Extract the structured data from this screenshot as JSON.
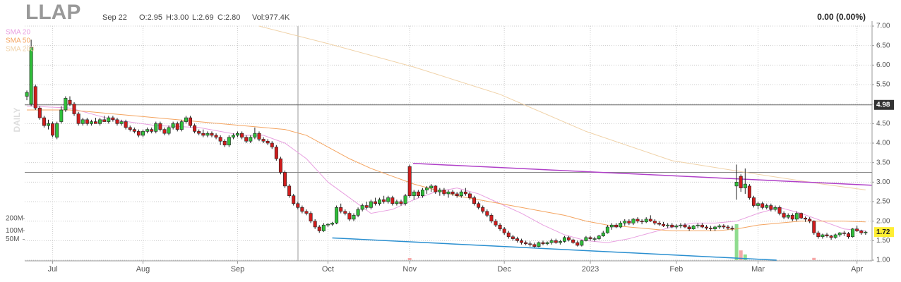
{
  "chart_data": {
    "type": "candlestick",
    "title": "LLAP",
    "info": [
      "Sep 22",
      "O:2.95",
      "H:3.00",
      "L:2.69",
      "C:2.80",
      "Vol:977.4K"
    ],
    "change": "0.00 (0.00%)",
    "period_label": "DAILY",
    "xlim": [
      -0.5,
      196.5
    ],
    "xticks": [
      {
        "value": 6,
        "label": "Jul"
      },
      {
        "value": 27,
        "label": "Aug"
      },
      {
        "value": 49,
        "label": "Sep"
      },
      {
        "value": 70,
        "label": "Oct"
      },
      {
        "value": 89,
        "label": "Nov"
      },
      {
        "value": 111,
        "label": "Dec"
      },
      {
        "value": 131,
        "label": "2023"
      },
      {
        "value": 151,
        "label": "Feb"
      },
      {
        "value": 170,
        "label": "Mar"
      },
      {
        "value": 193,
        "label": "Apr"
      }
    ],
    "ylim": [
      1,
      7
    ],
    "yticks": [
      {
        "value": 1,
        "label": "1.00"
      },
      {
        "value": 1.5,
        "label": "1.50"
      },
      {
        "value": 2,
        "label": "2.00"
      },
      {
        "value": 2.5,
        "label": "2.50"
      },
      {
        "value": 3,
        "label": "3.00"
      },
      {
        "value": 3.5,
        "label": "3.50"
      },
      {
        "value": 4,
        "label": "4.00"
      },
      {
        "value": 4.5,
        "label": "4.50"
      },
      {
        "value": 5,
        "label": "5.00"
      },
      {
        "value": 5.5,
        "label": "5.50"
      },
      {
        "value": 6,
        "label": "6.00"
      },
      {
        "value": 6.5,
        "label": "6.50"
      },
      {
        "value": 7,
        "label": "7.00"
      }
    ],
    "grid": true,
    "up_color": "#2fbf3a",
    "down_color": "#d01c1c",
    "ohlc": [
      [
        5.2,
        5.35,
        5.1,
        5.3
      ],
      [
        5.0,
        6.65,
        4.95,
        6.45
      ],
      [
        5.45,
        5.5,
        4.85,
        4.9
      ],
      [
        4.9,
        4.95,
        4.6,
        4.65
      ],
      [
        4.65,
        4.7,
        4.4,
        4.45
      ],
      [
        4.45,
        4.6,
        4.35,
        4.5
      ],
      [
        4.5,
        4.55,
        4.15,
        4.2
      ],
      [
        4.15,
        4.55,
        4.1,
        4.5
      ],
      [
        4.55,
        4.95,
        4.5,
        4.85
      ],
      [
        4.85,
        5.2,
        4.8,
        5.15
      ],
      [
        5.1,
        5.2,
        4.95,
        5.0
      ],
      [
        5.0,
        5.05,
        4.7,
        4.75
      ],
      [
        4.75,
        4.8,
        4.45,
        4.5
      ],
      [
        4.5,
        4.65,
        4.45,
        4.6
      ],
      [
        4.6,
        4.65,
        4.45,
        4.5
      ],
      [
        4.5,
        4.6,
        4.45,
        4.55
      ],
      [
        4.55,
        4.65,
        4.5,
        4.5
      ],
      [
        4.5,
        4.65,
        4.45,
        4.6
      ],
      [
        4.6,
        4.7,
        4.55,
        4.55
      ],
      [
        4.55,
        4.7,
        4.5,
        4.65
      ],
      [
        4.65,
        4.7,
        4.55,
        4.6
      ],
      [
        4.6,
        4.65,
        4.45,
        4.5
      ],
      [
        4.5,
        4.6,
        4.45,
        4.55
      ],
      [
        4.55,
        4.6,
        4.35,
        4.4
      ],
      [
        4.4,
        4.45,
        4.3,
        4.35
      ],
      [
        4.35,
        4.4,
        4.25,
        4.3
      ],
      [
        4.3,
        4.35,
        4.15,
        4.2
      ],
      [
        4.2,
        4.35,
        4.15,
        4.3
      ],
      [
        4.3,
        4.4,
        4.25,
        4.35
      ],
      [
        4.35,
        4.4,
        4.25,
        4.3
      ],
      [
        4.3,
        4.55,
        4.25,
        4.5
      ],
      [
        4.5,
        4.55,
        4.3,
        4.35
      ],
      [
        4.35,
        4.4,
        4.2,
        4.25
      ],
      [
        4.25,
        4.45,
        4.2,
        4.4
      ],
      [
        4.4,
        4.55,
        4.35,
        4.5
      ],
      [
        4.5,
        4.55,
        4.3,
        4.35
      ],
      [
        4.35,
        4.6,
        4.3,
        4.55
      ],
      [
        4.55,
        4.7,
        4.5,
        4.65
      ],
      [
        4.65,
        4.7,
        4.4,
        4.45
      ],
      [
        4.45,
        4.5,
        4.25,
        4.3
      ],
      [
        4.3,
        4.35,
        4.2,
        4.25
      ],
      [
        4.25,
        4.35,
        4.15,
        4.2
      ],
      [
        4.2,
        4.3,
        4.15,
        4.25
      ],
      [
        4.25,
        4.3,
        4.15,
        4.2
      ],
      [
        4.2,
        4.25,
        4.1,
        4.15
      ],
      [
        4.15,
        4.2,
        3.95,
        4.05
      ],
      [
        4.05,
        4.1,
        3.9,
        3.95
      ],
      [
        3.95,
        4.2,
        3.9,
        4.15
      ],
      [
        4.15,
        4.25,
        4.1,
        4.2
      ],
      [
        4.2,
        4.3,
        4.15,
        4.25
      ],
      [
        4.25,
        4.3,
        4.1,
        4.15
      ],
      [
        4.15,
        4.2,
        4.0,
        4.05
      ],
      [
        4.05,
        4.2,
        4.0,
        4.15
      ],
      [
        4.15,
        4.4,
        4.1,
        4.25
      ],
      [
        4.25,
        4.3,
        4.05,
        4.1
      ],
      [
        4.1,
        4.15,
        4.0,
        4.05
      ],
      [
        4.05,
        4.1,
        3.95,
        4.0
      ],
      [
        4.0,
        4.05,
        3.85,
        3.9
      ],
      [
        3.9,
        3.95,
        3.55,
        3.6
      ],
      [
        3.6,
        3.65,
        3.2,
        3.25
      ],
      [
        3.25,
        3.3,
        2.85,
        2.9
      ],
      [
        2.9,
        2.95,
        2.6,
        2.65
      ],
      [
        2.65,
        2.7,
        2.4,
        2.45
      ],
      [
        2.45,
        2.5,
        2.3,
        2.35
      ],
      [
        2.35,
        2.4,
        2.2,
        2.25
      ],
      [
        2.25,
        2.3,
        2.15,
        2.2
      ],
      [
        2.2,
        2.25,
        1.95,
        2.0
      ],
      [
        2.0,
        2.05,
        1.8,
        1.85
      ],
      [
        1.85,
        1.9,
        1.7,
        1.75
      ],
      [
        1.75,
        1.95,
        1.72,
        1.9
      ],
      [
        1.9,
        1.95,
        1.85,
        1.92
      ],
      [
        1.92,
        1.98,
        1.88,
        1.95
      ],
      [
        1.95,
        2.4,
        1.92,
        2.35
      ],
      [
        2.35,
        2.45,
        2.2,
        2.25
      ],
      [
        2.25,
        2.3,
        2.15,
        2.2
      ],
      [
        2.2,
        2.25,
        2.0,
        2.05
      ],
      [
        2.05,
        2.2,
        2.0,
        2.15
      ],
      [
        2.15,
        2.35,
        2.1,
        2.3
      ],
      [
        2.3,
        2.45,
        2.25,
        2.4
      ],
      [
        2.4,
        2.5,
        2.3,
        2.35
      ],
      [
        2.35,
        2.55,
        2.3,
        2.5
      ],
      [
        2.5,
        2.6,
        2.4,
        2.45
      ],
      [
        2.45,
        2.6,
        2.4,
        2.55
      ],
      [
        2.55,
        2.65,
        2.45,
        2.5
      ],
      [
        2.5,
        2.65,
        2.45,
        2.6
      ],
      [
        2.6,
        2.65,
        2.4,
        2.45
      ],
      [
        2.45,
        2.55,
        2.4,
        2.5
      ],
      [
        2.5,
        2.55,
        2.4,
        2.45
      ],
      [
        2.45,
        2.7,
        2.4,
        2.65
      ],
      [
        3.4,
        3.45,
        2.6,
        2.65
      ],
      [
        2.65,
        2.8,
        2.55,
        2.75
      ],
      [
        2.75,
        2.8,
        2.6,
        2.65
      ],
      [
        2.65,
        2.85,
        2.6,
        2.8
      ],
      [
        2.8,
        2.9,
        2.7,
        2.85
      ],
      [
        2.85,
        2.95,
        2.75,
        2.9
      ],
      [
        2.9,
        2.92,
        2.7,
        2.75
      ],
      [
        2.75,
        2.85,
        2.65,
        2.8
      ],
      [
        2.8,
        2.85,
        2.65,
        2.7
      ],
      [
        2.7,
        2.8,
        2.6,
        2.75
      ],
      [
        2.75,
        2.8,
        2.65,
        2.7
      ],
      [
        2.7,
        2.75,
        2.6,
        2.65
      ],
      [
        2.65,
        2.8,
        2.6,
        2.75
      ],
      [
        2.75,
        2.85,
        2.65,
        2.7
      ],
      [
        2.7,
        2.75,
        2.55,
        2.6
      ],
      [
        2.6,
        2.65,
        2.4,
        2.45
      ],
      [
        2.45,
        2.5,
        2.3,
        2.35
      ],
      [
        2.35,
        2.4,
        2.2,
        2.25
      ],
      [
        2.25,
        2.3,
        2.1,
        2.15
      ],
      [
        2.15,
        2.2,
        1.95,
        2.0
      ],
      [
        2.0,
        2.05,
        1.85,
        1.9
      ],
      [
        1.9,
        1.95,
        1.75,
        1.8
      ],
      [
        1.8,
        1.85,
        1.65,
        1.7
      ],
      [
        1.7,
        1.75,
        1.55,
        1.6
      ],
      [
        1.6,
        1.65,
        1.5,
        1.55
      ],
      [
        1.55,
        1.6,
        1.45,
        1.5
      ],
      [
        1.5,
        1.55,
        1.4,
        1.45
      ],
      [
        1.45,
        1.5,
        1.38,
        1.42
      ],
      [
        1.42,
        1.48,
        1.35,
        1.4
      ],
      [
        1.4,
        1.45,
        1.32,
        1.35
      ],
      [
        1.35,
        1.48,
        1.33,
        1.45
      ],
      [
        1.45,
        1.5,
        1.38,
        1.42
      ],
      [
        1.42,
        1.48,
        1.38,
        1.45
      ],
      [
        1.45,
        1.55,
        1.4,
        1.5
      ],
      [
        1.5,
        1.55,
        1.42,
        1.45
      ],
      [
        1.45,
        1.52,
        1.4,
        1.48
      ],
      [
        1.48,
        1.62,
        1.45,
        1.58
      ],
      [
        1.58,
        1.62,
        1.48,
        1.52
      ],
      [
        1.52,
        1.55,
        1.42,
        1.45
      ],
      [
        1.45,
        1.5,
        1.35,
        1.38
      ],
      [
        1.38,
        1.52,
        1.35,
        1.5
      ],
      [
        1.5,
        1.62,
        1.48,
        1.58
      ],
      [
        1.58,
        1.62,
        1.5,
        1.55
      ],
      [
        1.55,
        1.6,
        1.48,
        1.55
      ],
      [
        1.55,
        1.65,
        1.52,
        1.62
      ],
      [
        1.62,
        1.75,
        1.6,
        1.7
      ],
      [
        1.7,
        1.9,
        1.68,
        1.85
      ],
      [
        1.85,
        1.95,
        1.78,
        1.9
      ],
      [
        1.9,
        1.95,
        1.82,
        1.85
      ],
      [
        1.85,
        2.0,
        1.82,
        1.95
      ],
      [
        1.95,
        2.05,
        1.88,
        2.0
      ],
      [
        2.0,
        2.05,
        1.9,
        1.95
      ],
      [
        1.95,
        2.08,
        1.9,
        2.05
      ],
      [
        2.05,
        2.1,
        1.95,
        2.0
      ],
      [
        2.0,
        2.05,
        1.92,
        1.98
      ],
      [
        1.98,
        2.1,
        1.95,
        2.05
      ],
      [
        2.05,
        2.15,
        1.98,
        2.0
      ],
      [
        2.0,
        2.05,
        1.9,
        1.95
      ],
      [
        1.95,
        2.0,
        1.88,
        1.92
      ],
      [
        1.92,
        1.98,
        1.85,
        1.88
      ],
      [
        1.88,
        1.95,
        1.82,
        1.9
      ],
      [
        1.9,
        1.95,
        1.82,
        1.85
      ],
      [
        1.85,
        1.92,
        1.8,
        1.88
      ],
      [
        1.88,
        1.95,
        1.82,
        1.9
      ],
      [
        1.9,
        1.95,
        1.82,
        1.85
      ],
      [
        1.85,
        1.9,
        1.75,
        1.8
      ],
      [
        1.8,
        1.9,
        1.78,
        1.88
      ],
      [
        1.88,
        1.95,
        1.82,
        1.9
      ],
      [
        1.9,
        1.95,
        1.82,
        1.85
      ],
      [
        1.85,
        1.9,
        1.78,
        1.82
      ],
      [
        1.82,
        1.88,
        1.75,
        1.8
      ],
      [
        1.8,
        1.88,
        1.75,
        1.85
      ],
      [
        1.85,
        1.92,
        1.8,
        1.88
      ],
      [
        1.88,
        1.92,
        1.8,
        1.85
      ],
      [
        1.85,
        1.9,
        1.78,
        1.82
      ],
      [
        1.82,
        1.88,
        1.75,
        1.8
      ],
      [
        2.9,
        3.45,
        2.55,
        3.0
      ],
      [
        3.15,
        3.2,
        2.75,
        2.85
      ],
      [
        2.85,
        3.35,
        2.7,
        2.95
      ],
      [
        2.9,
        2.95,
        2.55,
        2.6
      ],
      [
        2.6,
        2.65,
        2.35,
        2.4
      ],
      [
        2.4,
        2.5,
        2.3,
        2.45
      ],
      [
        2.45,
        2.5,
        2.3,
        2.35
      ],
      [
        2.35,
        2.45,
        2.3,
        2.4
      ],
      [
        2.4,
        2.45,
        2.25,
        2.3
      ],
      [
        2.3,
        2.4,
        2.25,
        2.35
      ],
      [
        2.35,
        2.4,
        2.15,
        2.2
      ],
      [
        2.2,
        2.25,
        2.05,
        2.1
      ],
      [
        2.1,
        2.2,
        2.05,
        2.15
      ],
      [
        2.15,
        2.2,
        2.0,
        2.05
      ],
      [
        2.05,
        2.25,
        2.0,
        2.2
      ],
      [
        2.2,
        2.22,
        2.05,
        2.08
      ],
      [
        2.08,
        2.12,
        1.98,
        2.05
      ],
      [
        2.05,
        2.1,
        1.95,
        2.0
      ],
      [
        2.0,
        2.02,
        1.65,
        1.7
      ],
      [
        1.7,
        1.75,
        1.55,
        1.6
      ],
      [
        1.6,
        1.68,
        1.55,
        1.65
      ],
      [
        1.65,
        1.7,
        1.58,
        1.62
      ],
      [
        1.62,
        1.65,
        1.52,
        1.58
      ],
      [
        1.58,
        1.68,
        1.55,
        1.65
      ],
      [
        1.65,
        1.72,
        1.6,
        1.7
      ],
      [
        1.7,
        1.75,
        1.62,
        1.68
      ],
      [
        1.68,
        1.72,
        1.55,
        1.6
      ],
      [
        1.6,
        1.82,
        1.58,
        1.8
      ],
      [
        1.8,
        1.88,
        1.72,
        1.75
      ],
      [
        1.75,
        1.78,
        1.65,
        1.7
      ],
      [
        1.7,
        1.75,
        1.65,
        1.72
      ]
    ],
    "series": [
      {
        "name": "SMA 20",
        "color": "#e8a0e0",
        "x": [
          0,
          10,
          20,
          30,
          40,
          50,
          55,
          60,
          65,
          70,
          75,
          80,
          85,
          90,
          95,
          100,
          105,
          110,
          115,
          120,
          125,
          130,
          135,
          140,
          145,
          150,
          155,
          160,
          165,
          170,
          175,
          180,
          185,
          190,
          195
        ],
        "values": [
          4.95,
          4.9,
          4.6,
          4.45,
          4.4,
          4.2,
          4.2,
          4.0,
          3.6,
          3.0,
          2.6,
          2.2,
          2.3,
          2.55,
          2.75,
          2.85,
          2.7,
          2.45,
          2.2,
          1.9,
          1.65,
          1.5,
          1.45,
          1.55,
          1.7,
          1.85,
          1.95,
          1.95,
          2.0,
          2.2,
          2.35,
          2.2,
          2.0,
          1.8,
          1.75
        ]
      },
      {
        "name": "SMA 50",
        "color": "#f4a460",
        "x": [
          0,
          10,
          20,
          30,
          40,
          50,
          60,
          65,
          70,
          75,
          80,
          85,
          90,
          95,
          100,
          105,
          110,
          115,
          120,
          125,
          130,
          135,
          140,
          145,
          150,
          155,
          160,
          165,
          170,
          175,
          180,
          185,
          190,
          195
        ],
        "values": [
          4.85,
          4.85,
          4.75,
          4.65,
          4.55,
          4.45,
          4.35,
          4.2,
          3.9,
          3.6,
          3.35,
          3.15,
          2.95,
          2.8,
          2.65,
          2.55,
          2.45,
          2.35,
          2.25,
          2.15,
          2.0,
          1.9,
          1.85,
          1.8,
          1.75,
          1.75,
          1.75,
          1.8,
          1.9,
          1.95,
          2.0,
          2.0,
          2.0,
          1.98
        ]
      },
      {
        "name": "SMA 200",
        "color": "#f0d2a8",
        "x": [
          54,
          70,
          90,
          110,
          130,
          150,
          170,
          185,
          195
        ],
        "values": [
          7.0,
          6.55,
          5.95,
          5.25,
          4.3,
          3.55,
          3.2,
          2.95,
          2.8
        ]
      }
    ],
    "trendlines": [
      {
        "color": "#b040c8",
        "x": [
          89.8,
          196.4
        ],
        "values": [
          3.48,
          2.92
        ]
      },
      {
        "color": "#2a8fd0",
        "x": [
          71,
          174.3
        ],
        "values": [
          1.57,
          1.0
        ]
      }
    ],
    "levels": [
      {
        "value": 4.98,
        "color": "#666"
      },
      {
        "value": 3.25,
        "color": "#888"
      }
    ],
    "volume": {
      "vlim": [
        0,
        200000000
      ],
      "scale": "sqrt",
      "ticks": [
        {
          "value": 200000000,
          "label": "200M"
        },
        {
          "value": 100000000,
          "label": "100M"
        },
        {
          "value": 50000000,
          "label": "50M"
        }
      ],
      "x": [
        89,
        165,
        166,
        167,
        183
      ],
      "values": [
        500000,
        150000000,
        11000000,
        3700000,
        600000
      ],
      "colors": [
        "#f4a7a7",
        "#8fdc8f",
        "#f4a7a7",
        "#8fdc8f",
        "#f4a7a7"
      ]
    }
  }
}
